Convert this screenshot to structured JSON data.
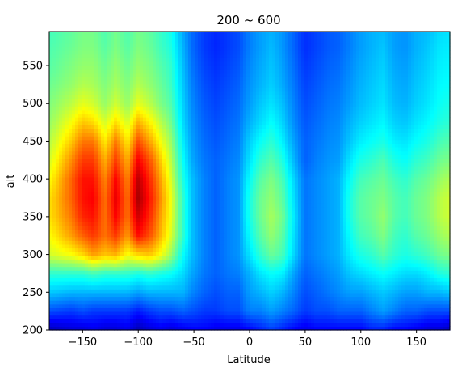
{
  "chart_data": {
    "type": "heatmap",
    "title": "200 ~ 600",
    "xlabel": "Latitude",
    "ylabel": "alt",
    "xlim": [
      -180,
      180
    ],
    "ylim": [
      200,
      595
    ],
    "x_ticks": [
      -150,
      -100,
      -50,
      0,
      50,
      100,
      150
    ],
    "y_ticks": [
      200,
      250,
      300,
      350,
      400,
      450,
      500,
      550
    ],
    "colormap": "jet",
    "x": [
      -180,
      -160,
      -150,
      -140,
      -130,
      -120,
      -110,
      -100,
      -90,
      -80,
      -70,
      -60,
      -50,
      -40,
      -30,
      -20,
      -10,
      0,
      10,
      20,
      30,
      40,
      50,
      60,
      70,
      80,
      90,
      100,
      110,
      120,
      130,
      140,
      150,
      160,
      170,
      180
    ],
    "y": [
      200,
      225,
      250,
      275,
      300,
      325,
      350,
      375,
      400,
      425,
      450,
      475,
      500,
      525,
      550,
      575,
      595
    ],
    "z": [
      [
        0.05,
        0.08,
        0.08,
        0.1,
        0.08,
        0.08,
        0.1,
        0.05,
        0.08,
        0.1,
        0.08,
        0.1,
        0.12,
        0.12,
        0.1,
        0.1,
        0.1,
        0.12,
        0.15,
        0.18,
        0.15,
        0.12,
        0.1,
        0.12,
        0.12,
        0.12,
        0.12,
        0.12,
        0.15,
        0.15,
        0.12,
        0.12,
        0.1,
        0.08,
        0.08,
        0.05
      ],
      [
        0.2,
        0.18,
        0.2,
        0.18,
        0.18,
        0.18,
        0.18,
        0.15,
        0.18,
        0.2,
        0.2,
        0.22,
        0.2,
        0.18,
        0.18,
        0.2,
        0.2,
        0.25,
        0.25,
        0.28,
        0.25,
        0.22,
        0.18,
        0.2,
        0.2,
        0.22,
        0.22,
        0.22,
        0.25,
        0.28,
        0.25,
        0.22,
        0.22,
        0.2,
        0.2,
        0.2
      ],
      [
        0.32,
        0.3,
        0.3,
        0.3,
        0.3,
        0.3,
        0.3,
        0.28,
        0.3,
        0.3,
        0.3,
        0.3,
        0.25,
        0.22,
        0.2,
        0.22,
        0.22,
        0.28,
        0.3,
        0.33,
        0.3,
        0.25,
        0.2,
        0.22,
        0.24,
        0.26,
        0.28,
        0.28,
        0.3,
        0.32,
        0.3,
        0.28,
        0.28,
        0.3,
        0.3,
        0.32
      ],
      [
        0.42,
        0.42,
        0.42,
        0.44,
        0.42,
        0.42,
        0.42,
        0.4,
        0.42,
        0.4,
        0.38,
        0.34,
        0.28,
        0.24,
        0.22,
        0.24,
        0.25,
        0.3,
        0.35,
        0.38,
        0.36,
        0.28,
        0.22,
        0.24,
        0.26,
        0.28,
        0.32,
        0.34,
        0.36,
        0.38,
        0.36,
        0.34,
        0.34,
        0.36,
        0.4,
        0.42
      ],
      [
        0.58,
        0.62,
        0.66,
        0.72,
        0.68,
        0.7,
        0.62,
        0.66,
        0.68,
        0.62,
        0.52,
        0.38,
        0.3,
        0.25,
        0.22,
        0.25,
        0.27,
        0.35,
        0.42,
        0.48,
        0.44,
        0.33,
        0.24,
        0.26,
        0.28,
        0.3,
        0.36,
        0.4,
        0.42,
        0.46,
        0.42,
        0.4,
        0.42,
        0.44,
        0.48,
        0.5
      ],
      [
        0.62,
        0.72,
        0.78,
        0.82,
        0.76,
        0.82,
        0.72,
        0.86,
        0.8,
        0.7,
        0.58,
        0.42,
        0.3,
        0.25,
        0.22,
        0.25,
        0.27,
        0.38,
        0.46,
        0.52,
        0.46,
        0.34,
        0.24,
        0.26,
        0.28,
        0.3,
        0.38,
        0.44,
        0.46,
        0.5,
        0.44,
        0.42,
        0.46,
        0.48,
        0.52,
        0.55
      ],
      [
        0.65,
        0.76,
        0.84,
        0.86,
        0.76,
        0.88,
        0.76,
        0.92,
        0.84,
        0.72,
        0.6,
        0.42,
        0.3,
        0.25,
        0.22,
        0.25,
        0.27,
        0.4,
        0.48,
        0.54,
        0.48,
        0.35,
        0.24,
        0.26,
        0.28,
        0.3,
        0.4,
        0.46,
        0.48,
        0.52,
        0.46,
        0.44,
        0.48,
        0.5,
        0.55,
        0.58
      ],
      [
        0.65,
        0.78,
        0.86,
        0.88,
        0.76,
        0.9,
        0.76,
        0.96,
        0.86,
        0.74,
        0.6,
        0.42,
        0.3,
        0.25,
        0.22,
        0.25,
        0.27,
        0.4,
        0.48,
        0.52,
        0.46,
        0.34,
        0.24,
        0.26,
        0.28,
        0.3,
        0.4,
        0.46,
        0.48,
        0.5,
        0.46,
        0.44,
        0.48,
        0.5,
        0.55,
        0.58
      ],
      [
        0.62,
        0.78,
        0.86,
        0.86,
        0.74,
        0.88,
        0.74,
        0.94,
        0.84,
        0.72,
        0.58,
        0.4,
        0.3,
        0.25,
        0.22,
        0.25,
        0.27,
        0.38,
        0.46,
        0.5,
        0.44,
        0.33,
        0.24,
        0.26,
        0.28,
        0.3,
        0.38,
        0.44,
        0.46,
        0.48,
        0.44,
        0.42,
        0.46,
        0.48,
        0.52,
        0.55
      ],
      [
        0.58,
        0.74,
        0.82,
        0.82,
        0.7,
        0.82,
        0.7,
        0.88,
        0.8,
        0.68,
        0.55,
        0.38,
        0.28,
        0.24,
        0.22,
        0.24,
        0.26,
        0.35,
        0.42,
        0.46,
        0.4,
        0.3,
        0.22,
        0.25,
        0.27,
        0.28,
        0.35,
        0.4,
        0.42,
        0.45,
        0.4,
        0.38,
        0.42,
        0.44,
        0.48,
        0.5
      ],
      [
        0.55,
        0.68,
        0.76,
        0.76,
        0.64,
        0.76,
        0.64,
        0.8,
        0.72,
        0.62,
        0.52,
        0.36,
        0.27,
        0.23,
        0.21,
        0.23,
        0.25,
        0.33,
        0.38,
        0.42,
        0.36,
        0.28,
        0.22,
        0.24,
        0.26,
        0.27,
        0.32,
        0.36,
        0.38,
        0.4,
        0.36,
        0.35,
        0.38,
        0.4,
        0.44,
        0.46
      ],
      [
        0.52,
        0.62,
        0.68,
        0.66,
        0.58,
        0.66,
        0.58,
        0.7,
        0.64,
        0.56,
        0.48,
        0.34,
        0.26,
        0.22,
        0.2,
        0.22,
        0.24,
        0.3,
        0.34,
        0.38,
        0.33,
        0.26,
        0.21,
        0.23,
        0.25,
        0.26,
        0.3,
        0.33,
        0.35,
        0.37,
        0.33,
        0.32,
        0.35,
        0.37,
        0.4,
        0.42
      ],
      [
        0.5,
        0.56,
        0.6,
        0.58,
        0.52,
        0.58,
        0.52,
        0.6,
        0.56,
        0.5,
        0.45,
        0.33,
        0.25,
        0.21,
        0.19,
        0.21,
        0.23,
        0.28,
        0.32,
        0.35,
        0.31,
        0.25,
        0.2,
        0.22,
        0.24,
        0.25,
        0.28,
        0.31,
        0.33,
        0.35,
        0.31,
        0.3,
        0.33,
        0.35,
        0.38,
        0.4
      ],
      [
        0.48,
        0.52,
        0.55,
        0.54,
        0.5,
        0.54,
        0.5,
        0.55,
        0.52,
        0.48,
        0.43,
        0.32,
        0.24,
        0.2,
        0.18,
        0.2,
        0.22,
        0.27,
        0.3,
        0.33,
        0.29,
        0.24,
        0.19,
        0.21,
        0.23,
        0.24,
        0.27,
        0.3,
        0.32,
        0.34,
        0.3,
        0.29,
        0.32,
        0.34,
        0.37,
        0.38
      ],
      [
        0.46,
        0.5,
        0.52,
        0.52,
        0.48,
        0.52,
        0.48,
        0.52,
        0.5,
        0.46,
        0.42,
        0.31,
        0.23,
        0.19,
        0.17,
        0.19,
        0.21,
        0.26,
        0.29,
        0.32,
        0.28,
        0.23,
        0.18,
        0.2,
        0.22,
        0.23,
        0.26,
        0.29,
        0.31,
        0.33,
        0.29,
        0.28,
        0.31,
        0.33,
        0.36,
        0.37
      ],
      [
        0.45,
        0.48,
        0.5,
        0.5,
        0.46,
        0.5,
        0.46,
        0.5,
        0.48,
        0.44,
        0.4,
        0.3,
        0.22,
        0.18,
        0.16,
        0.18,
        0.2,
        0.25,
        0.28,
        0.31,
        0.27,
        0.22,
        0.17,
        0.19,
        0.21,
        0.22,
        0.25,
        0.28,
        0.3,
        0.32,
        0.28,
        0.27,
        0.3,
        0.32,
        0.35,
        0.36
      ],
      [
        0.44,
        0.47,
        0.49,
        0.49,
        0.45,
        0.49,
        0.45,
        0.49,
        0.47,
        0.43,
        0.39,
        0.29,
        0.22,
        0.18,
        0.16,
        0.18,
        0.2,
        0.25,
        0.28,
        0.3,
        0.27,
        0.22,
        0.17,
        0.19,
        0.21,
        0.22,
        0.25,
        0.28,
        0.3,
        0.31,
        0.28,
        0.27,
        0.3,
        0.31,
        0.34,
        0.35
      ]
    ]
  }
}
